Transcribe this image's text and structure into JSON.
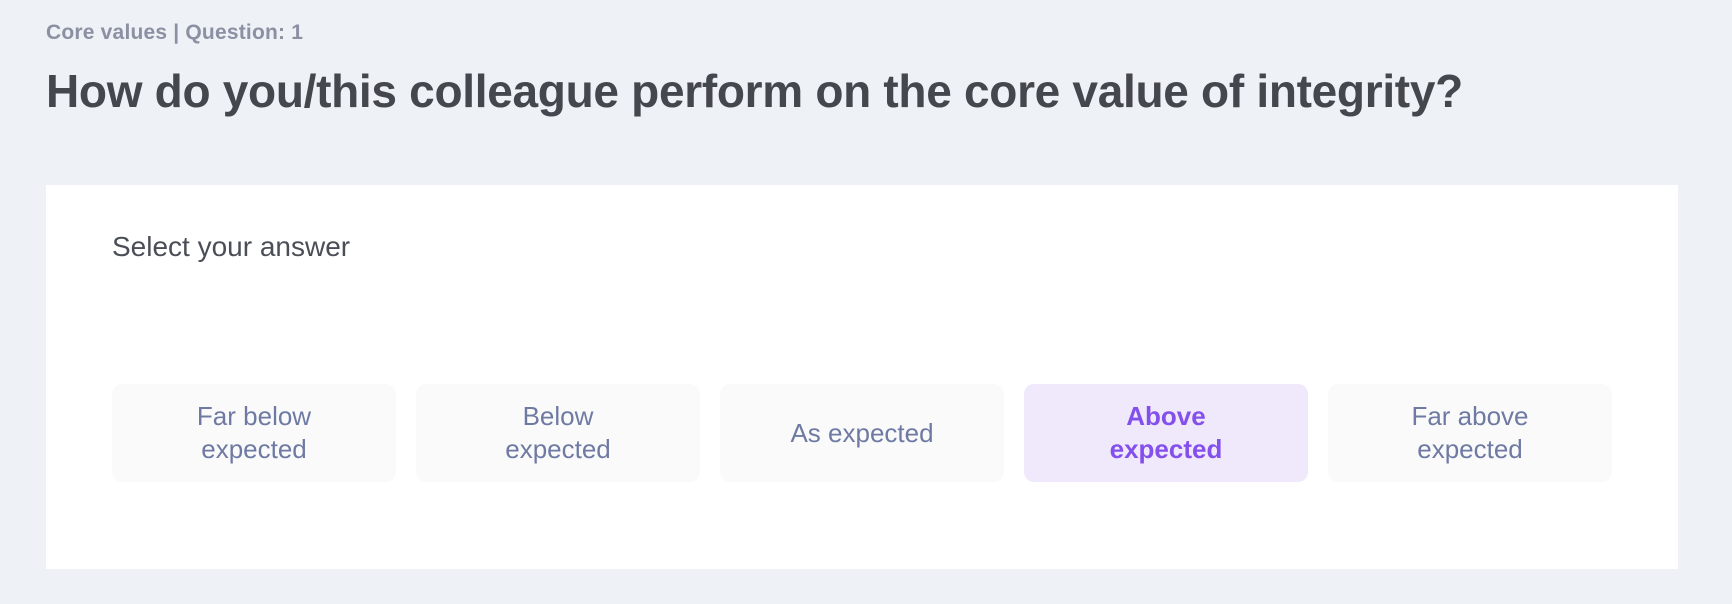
{
  "header": {
    "breadcrumb": "Core values | Question: 1",
    "question": "How do you/this colleague perform on the core value of integrity?"
  },
  "card": {
    "prompt": "Select your answer",
    "options": [
      {
        "label": "Far below expected",
        "selected": false
      },
      {
        "label": "Below expected",
        "selected": false
      },
      {
        "label": "As expected",
        "selected": false
      },
      {
        "label": "Above expected",
        "selected": true
      },
      {
        "label": "Far above expected",
        "selected": false
      }
    ]
  },
  "colors": {
    "page_bg": "#eef1f6",
    "card_bg": "#ffffff",
    "option_bg": "#fafafb",
    "option_text": "#6f7aa3",
    "option_selected_bg": "#f0e9fc",
    "option_selected_text": "#8450ec",
    "question_text": "#45474e",
    "breadcrumb_text": "#8b90a3",
    "prompt_text": "#4b4e57"
  }
}
